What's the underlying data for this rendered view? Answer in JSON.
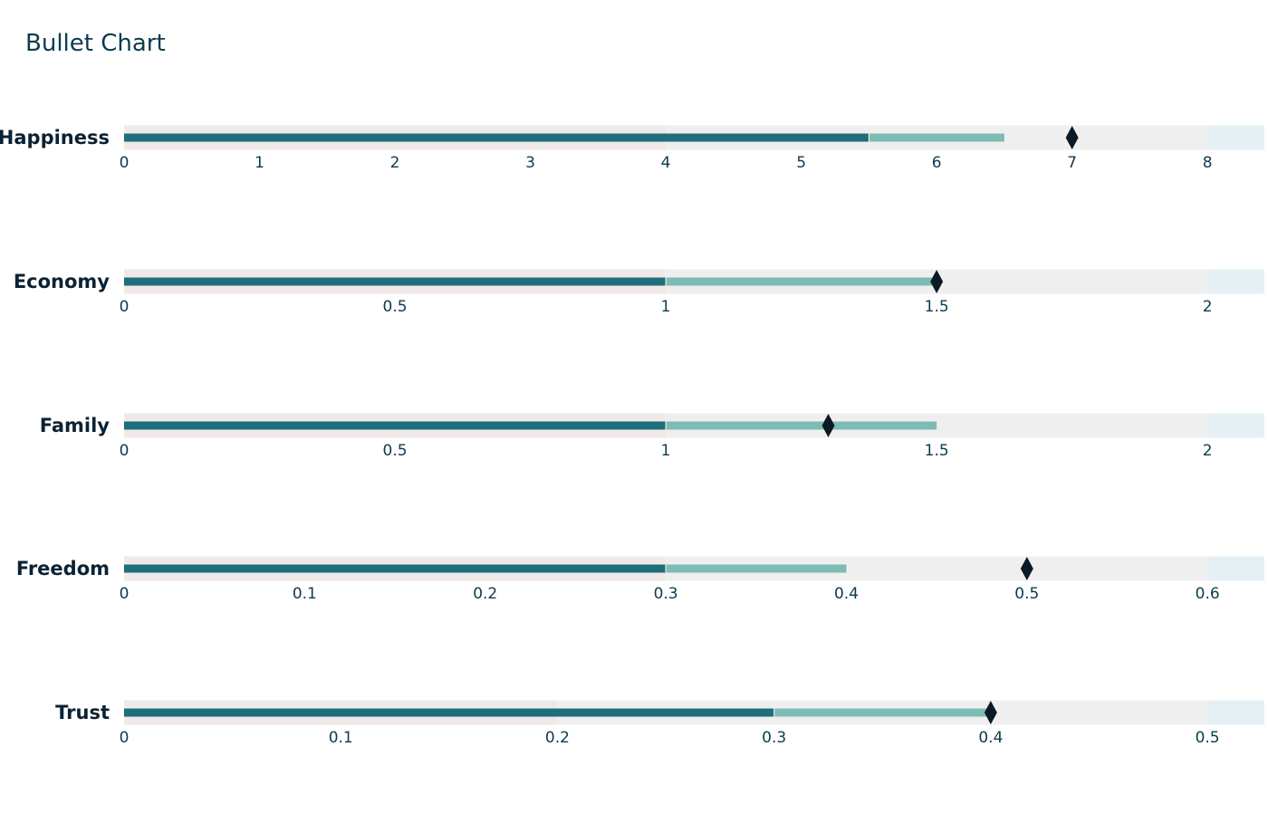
{
  "chart_data": {
    "type": "bullet",
    "title": "Bullet Chart",
    "colors": {
      "range_base": "#efe9e9",
      "range_main": "#efefef",
      "range_tail": "#e5f0f5",
      "measure_1": "#1f6e7a",
      "measure_2": "#7dbcb3",
      "marker": "#0b1a24",
      "tick_text": "#0d3b4e",
      "label_text": "#0b2233",
      "title_text": "#0d3b4e"
    },
    "rows": [
      {
        "label": "Happiness",
        "ticks": [
          0,
          1,
          2,
          3,
          4,
          5,
          6,
          7,
          8
        ],
        "tick_labels": [
          "0",
          "1",
          "2",
          "3",
          "4",
          "5",
          "6",
          "7",
          "8"
        ],
        "range_max": 8.42,
        "ranges": [
          4,
          8
        ],
        "measures": [
          5.5,
          6.5
        ],
        "marker": 7
      },
      {
        "label": "Economy",
        "ticks": [
          0,
          0.5,
          1,
          1.5,
          2
        ],
        "tick_labels": [
          "0",
          "0.5",
          "1",
          "1.5",
          "2"
        ],
        "range_max": 2.105,
        "ranges": [
          1,
          2
        ],
        "measures": [
          1,
          1.5
        ],
        "marker": 1.5
      },
      {
        "label": "Family",
        "ticks": [
          0,
          0.5,
          1,
          1.5,
          2
        ],
        "tick_labels": [
          "0",
          "0.5",
          "1",
          "1.5",
          "2"
        ],
        "range_max": 2.105,
        "ranges": [
          1,
          2
        ],
        "measures": [
          1,
          1.5
        ],
        "marker": 1.3
      },
      {
        "label": "Freedom",
        "ticks": [
          0,
          0.1,
          0.2,
          0.3,
          0.4,
          0.5,
          0.6
        ],
        "tick_labels": [
          "0",
          "0.1",
          "0.2",
          "0.3",
          "0.4",
          "0.5",
          "0.6"
        ],
        "range_max": 0.6315,
        "ranges": [
          0.3,
          0.6
        ],
        "measures": [
          0.3,
          0.4
        ],
        "marker": 0.5
      },
      {
        "label": "Trust",
        "ticks": [
          0,
          0.1,
          0.2,
          0.3,
          0.4,
          0.5
        ],
        "tick_labels": [
          "0",
          "0.1",
          "0.2",
          "0.3",
          "0.4",
          "0.5"
        ],
        "range_max": 0.5263,
        "ranges": [
          0.2,
          0.5
        ],
        "measures": [
          0.3,
          0.4
        ],
        "marker": 0.4
      }
    ]
  }
}
